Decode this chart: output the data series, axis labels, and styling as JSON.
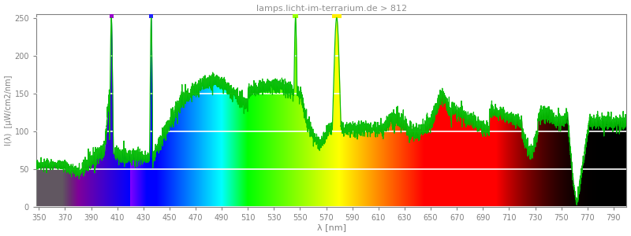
{
  "title": "lamps.licht-im-terrarium.de > 812",
  "xlabel": "λ [nm]",
  "ylabel": "I(λ)  [μW/cm2/nm]",
  "xlim": [
    348,
    800
  ],
  "ylim": [
    0,
    255
  ],
  "yticks": [
    0,
    50,
    100,
    150,
    200,
    250
  ],
  "xticks": [
    350,
    370,
    390,
    410,
    430,
    450,
    470,
    490,
    510,
    530,
    550,
    570,
    590,
    610,
    630,
    650,
    670,
    690,
    710,
    730,
    750,
    770,
    790
  ],
  "bg_color": "#f0f0f0",
  "title_color": "#909090",
  "tick_color": "#808080",
  "label_color": "#808080",
  "green_line_color": "#00bb00",
  "stripe_colors": [
    "#e8e8e8",
    "#f8f8f8"
  ],
  "uv_gray_color": "#606060",
  "ir_dark_start": 750
}
